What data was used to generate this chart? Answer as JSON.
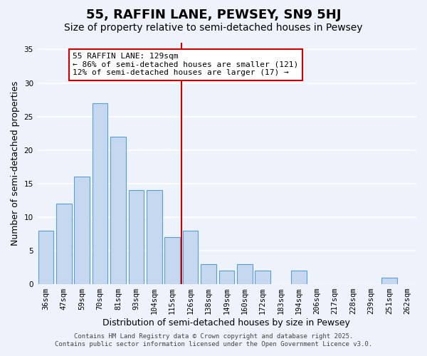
{
  "title": "55, RAFFIN LANE, PEWSEY, SN9 5HJ",
  "subtitle": "Size of property relative to semi-detached houses in Pewsey",
  "xlabel": "Distribution of semi-detached houses by size in Pewsey",
  "ylabel": "Number of semi-detached properties",
  "categories": [
    "36sqm",
    "47sqm",
    "59sqm",
    "70sqm",
    "81sqm",
    "93sqm",
    "104sqm",
    "115sqm",
    "126sqm",
    "138sqm",
    "149sqm",
    "160sqm",
    "172sqm",
    "183sqm",
    "194sqm",
    "206sqm",
    "217sqm",
    "228sqm",
    "239sqm",
    "251sqm",
    "262sqm"
  ],
  "values": [
    8,
    12,
    16,
    27,
    22,
    14,
    14,
    7,
    8,
    3,
    2,
    3,
    2,
    0,
    2,
    0,
    0,
    0,
    0,
    1,
    0
  ],
  "bar_color": "#c5d8f0",
  "bar_edge_color": "#5a9fd4",
  "vline_index": 8,
  "vline_color": "#cc0000",
  "annotation_title": "55 RAFFIN LANE: 129sqm",
  "annotation_line1": "← 86% of semi-detached houses are smaller (121)",
  "annotation_line2": "12% of semi-detached houses are larger (17) →",
  "annotation_box_color": "#cc0000",
  "ylim": [
    0,
    36
  ],
  "yticks": [
    0,
    5,
    10,
    15,
    20,
    25,
    30,
    35
  ],
  "footer1": "Contains HM Land Registry data © Crown copyright and database right 2025.",
  "footer2": "Contains public sector information licensed under the Open Government Licence v3.0.",
  "bg_color": "#eef2fb",
  "grid_color": "#ffffff",
  "title_fontsize": 13,
  "subtitle_fontsize": 10,
  "axis_label_fontsize": 9,
  "tick_fontsize": 7.5,
  "annotation_fontsize": 8,
  "footer_fontsize": 6.5
}
